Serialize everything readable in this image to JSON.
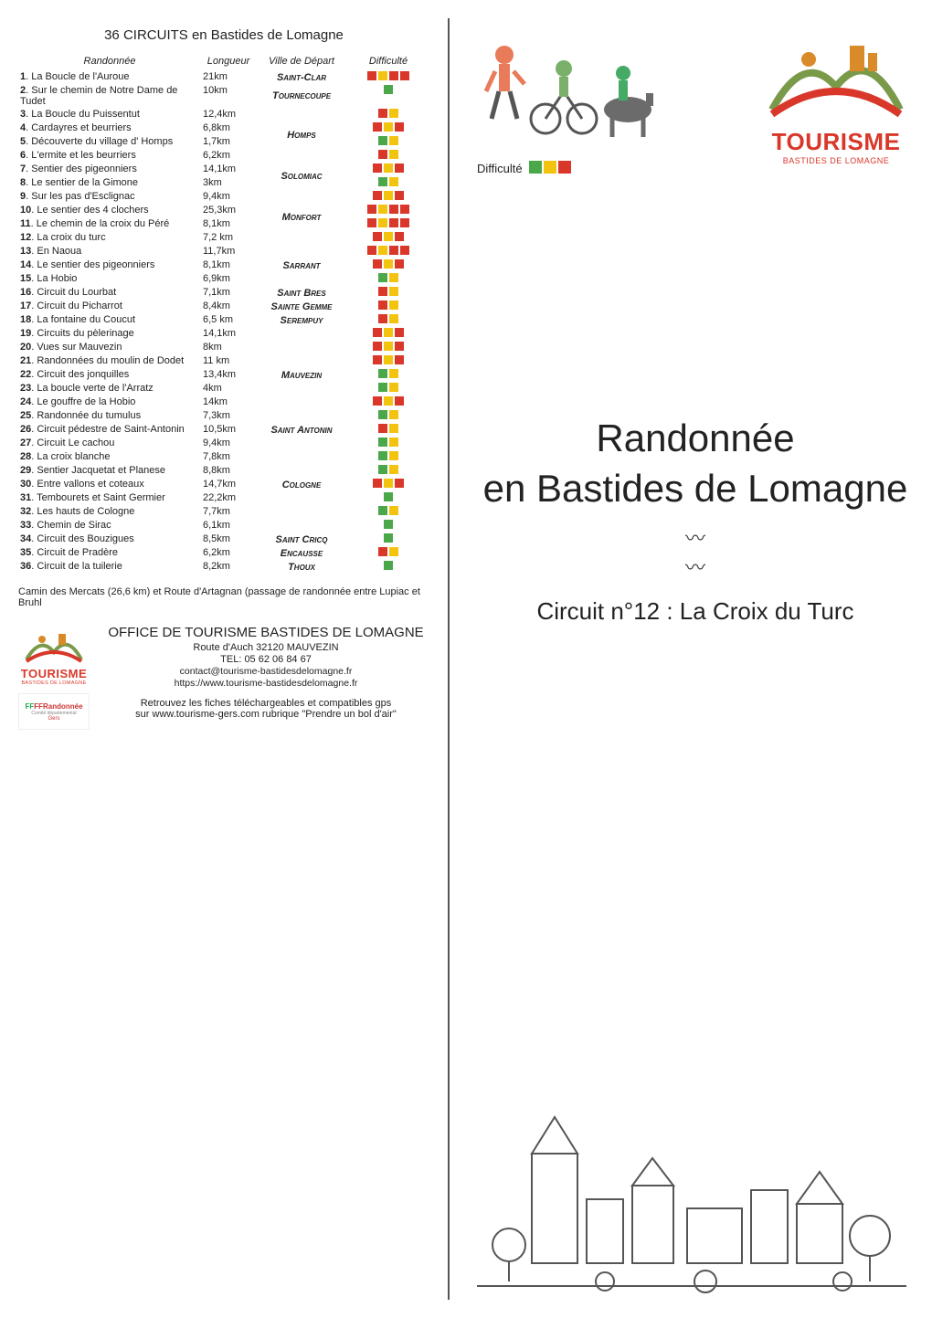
{
  "colors": {
    "green": "#4aa84a",
    "yellow": "#f3c40f",
    "red": "#d9372a",
    "black": "#222222",
    "brand_red": "#d9372a"
  },
  "left": {
    "title": "36 CIRCUITS en Bastides de Lomagne",
    "headers": {
      "rando": "Randonnée",
      "len": "Longueur",
      "ville": "Ville de Départ",
      "diff": "Difficulté"
    },
    "groups": [
      {
        "ville": "Saint-Clar",
        "rows": [
          {
            "n": "1",
            "name": "La Boucle de l'Auroue",
            "len": "21km",
            "diff": [
              "red",
              "yellow",
              "red",
              "red"
            ]
          }
        ]
      },
      {
        "ville": "Tournecoupe",
        "rows": [
          {
            "n": "2",
            "name": "Sur le chemin de Notre Dame de Tudet",
            "len": "10km",
            "diff": [
              "green"
            ]
          }
        ]
      },
      {
        "ville": "Homps",
        "rows": [
          {
            "n": "3",
            "name": "La Boucle du Puissentut",
            "len": "12,4km",
            "diff": [
              "red",
              "yellow"
            ]
          },
          {
            "n": "4",
            "name": "Cardayres et beurriers",
            "len": "6,8km",
            "diff": [
              "red",
              "yellow",
              "red"
            ]
          },
          {
            "n": "5",
            "name": "Découverte du village d' Homps",
            "len": "1,7km",
            "diff": [
              "green",
              "yellow"
            ]
          },
          {
            "n": "6",
            "name": "L'ermite et les beurriers",
            "len": "6,2km",
            "diff": [
              "red",
              "yellow"
            ]
          }
        ]
      },
      {
        "ville": "Solomiac",
        "rows": [
          {
            "n": "7",
            "name": "Sentier des pigeonniers",
            "len": "14,1km",
            "diff": [
              "red",
              "yellow",
              "red"
            ]
          },
          {
            "n": "8",
            "name": "Le sentier de la Gimone",
            "len": "3km",
            "diff": [
              "green",
              "yellow"
            ]
          }
        ]
      },
      {
        "ville": "Monfort",
        "rows": [
          {
            "n": "9",
            "name": "Sur les pas d'Esclignac",
            "len": "9,4km",
            "diff": [
              "red",
              "yellow",
              "red"
            ]
          },
          {
            "n": "10",
            "name": "Le sentier des 4 clochers",
            "len": "25,3km",
            "diff": [
              "red",
              "yellow",
              "red",
              "red"
            ]
          },
          {
            "n": "11",
            "name": "Le chemin de la croix du Péré",
            "len": "8,1km",
            "diff": [
              "red",
              "yellow",
              "red",
              "red"
            ]
          },
          {
            "n": "12",
            "name": "La croix du turc",
            "len": "7,2 km",
            "diff": [
              "red",
              "yellow",
              "red"
            ]
          }
        ]
      },
      {
        "ville": "Sarrant",
        "rows": [
          {
            "n": "13",
            "name": "En Naoua",
            "len": "11,7km",
            "diff": [
              "red",
              "yellow",
              "red",
              "red"
            ]
          },
          {
            "n": "14",
            "name": "Le sentier des pigeonniers",
            "len": "8,1km",
            "diff": [
              "red",
              "yellow",
              "red"
            ]
          },
          {
            "n": "15",
            "name": "La Hobio",
            "len": "6,9km",
            "diff": [
              "green",
              "yellow"
            ]
          }
        ]
      },
      {
        "ville": "Saint Bres",
        "rows": [
          {
            "n": "16",
            "name": "Circuit du Lourbat",
            "len": "7,1km",
            "diff": [
              "red",
              "yellow"
            ]
          }
        ]
      },
      {
        "ville": "Sainte Gemme",
        "rows": [
          {
            "n": "17",
            "name": "Circuit du Picharrot",
            "len": "8,4km",
            "diff": [
              "red",
              "yellow"
            ]
          }
        ]
      },
      {
        "ville": "Serempuy",
        "rows": [
          {
            "n": "18",
            "name": "La fontaine du Coucut",
            "len": "6,5 km",
            "diff": [
              "red",
              "yellow"
            ]
          }
        ]
      },
      {
        "ville": "Mauvezin",
        "rows": [
          {
            "n": "19",
            "name": "Circuits du pèlerinage",
            "len": "14,1km",
            "diff": [
              "red",
              "yellow",
              "red"
            ]
          },
          {
            "n": "20",
            "name": "Vues sur Mauvezin",
            "len": "8km",
            "diff": [
              "red",
              "yellow",
              "red"
            ]
          },
          {
            "n": "21",
            "name": "Randonnées du moulin de Dodet",
            "len": "11 km",
            "diff": [
              "red",
              "yellow",
              "red"
            ]
          },
          {
            "n": "22",
            "name": "Circuit des jonquilles",
            "len": "13,4km",
            "diff": [
              "green",
              "yellow"
            ]
          },
          {
            "n": "23",
            "name": "La boucle verte de l'Arratz",
            "len": "4km",
            "diff": [
              "green",
              "yellow"
            ]
          },
          {
            "n": "24",
            "name": "Le gouffre de la Hobio",
            "len": "14km",
            "diff": [
              "red",
              "yellow",
              "red"
            ]
          },
          {
            "n": "25",
            "name": "Randonnée du tumulus",
            "len": "7,3km",
            "diff": [
              "green",
              "yellow"
            ]
          }
        ]
      },
      {
        "ville": "Saint Antonin",
        "rows": [
          {
            "n": "26",
            "name": "Circuit pédestre de Saint-Antonin",
            "len": "10,5km",
            "diff": [
              "red",
              "yellow"
            ]
          }
        ]
      },
      {
        "ville": "Cologne",
        "rows": [
          {
            "n": "27",
            "name": "Circuit Le cachou",
            "len": "9,4km",
            "diff": [
              "green",
              "yellow"
            ]
          },
          {
            "n": "28",
            "name": "La croix blanche",
            "len": "7,8km",
            "diff": [
              "green",
              "yellow"
            ]
          },
          {
            "n": "29",
            "name": "Sentier Jacquetat et Planese",
            "len": "8,8km",
            "diff": [
              "green",
              "yellow"
            ]
          },
          {
            "n": "30",
            "name": "Entre vallons et coteaux",
            "len": "14,7km",
            "diff": [
              "red",
              "yellow",
              "red"
            ]
          },
          {
            "n": "31",
            "name": "Tembourets et Saint Germier",
            "len": "22,2km",
            "diff": [
              "green"
            ]
          },
          {
            "n": "32",
            "name": "Les hauts de Cologne",
            "len": "7,7km",
            "diff": [
              "green",
              "yellow"
            ]
          },
          {
            "n": "33",
            "name": "Chemin de Sirac",
            "len": "6,1km",
            "diff": [
              "green"
            ]
          }
        ]
      },
      {
        "ville": "Saint Cricq",
        "rows": [
          {
            "n": "34",
            "name": "Circuit des Bouzigues",
            "len": "8,5km",
            "diff": [
              "green"
            ]
          }
        ]
      },
      {
        "ville": "Encausse",
        "rows": [
          {
            "n": "35",
            "name": "Circuit de Pradère",
            "len": "6,2km",
            "diff": [
              "red",
              "yellow"
            ]
          }
        ]
      },
      {
        "ville": "Thoux",
        "rows": [
          {
            "n": "36",
            "name": "Circuit de la tuilerie",
            "len": "8,2km",
            "diff": [
              "green"
            ]
          }
        ]
      }
    ],
    "footer_note": "Camin des Mercats (26,6 km) et Route d'Artagnan (passage de randonnée entre Lupiac et Bruhl",
    "office": {
      "title": "OFFICE DE TOURISME BASTIDES DE LOMAGNE",
      "addr": "Route d'Auch 32120 MAUVEZIN",
      "tel": "TEL: 05 62 06 84 67",
      "email": "contact@tourisme-bastidesdelomagne.fr",
      "web": "https://www.tourisme-bastidesdelomagne.fr",
      "dl1": "Retrouvez les fiches téléchargeables et compatibles gps",
      "dl2": "sur www.tourisme-gers.com rubrique \"Prendre un bol d'air\""
    },
    "brand": {
      "name": "TOURISME",
      "sub": "BASTIDES DE LOMAGNE"
    },
    "ff": {
      "l1": "FFRandonnée",
      "l2": "Comité départemental",
      "l3": "Gers"
    }
  },
  "right": {
    "diff_label": "Difficulté",
    "diff_value": [
      "green",
      "yellow",
      "red"
    ],
    "brand": {
      "name": "TOURISME",
      "sub": "BASTIDES DE LOMAGNE"
    },
    "main1": "Randonnée",
    "main2": "en Bastides de Lomagne",
    "wave": "〰\n〰",
    "sub": "Circuit n°12 :  La Croix du Turc"
  }
}
